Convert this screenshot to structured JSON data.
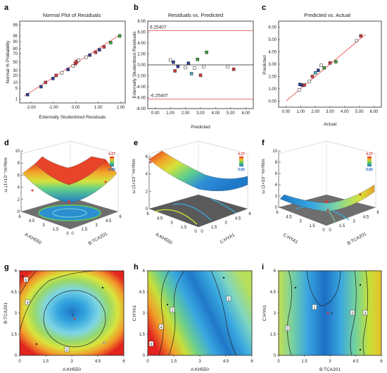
{
  "colors": {
    "ref_line": "#e8454a",
    "point_red": "#d13b3b",
    "point_blue": "#2f3f9b",
    "point_green": "#3fa53a",
    "point_cyan": "#48b0c8",
    "axis": "#222222",
    "floor_gray": "#6e6e6e"
  },
  "chart_data": [
    {
      "panel": "a",
      "type": "scatter",
      "title": "Normal Plot of Residuals",
      "xlabel": "Externally Studentized Residuals",
      "ylabel": "Normal % Probability",
      "x_ticks": [
        "-2.00",
        "-1.00",
        "0.00",
        "1.00",
        "2.00"
      ],
      "xlim": [
        -2.5,
        2.2
      ],
      "y_ticks": [
        "1",
        "5",
        "10",
        "20",
        "30",
        "50",
        "70",
        "80",
        "90",
        "95",
        "99"
      ],
      "y_probs": [
        1,
        5,
        10,
        20,
        30,
        50,
        70,
        80,
        90,
        95,
        99
      ],
      "line": [
        [
          -2.3,
          1.6
        ],
        [
          2.0,
          96
        ]
      ],
      "points": [
        {
          "x": -2.15,
          "y": 2,
          "color": "blue"
        },
        {
          "x": -1.55,
          "y": 6,
          "color": "blue"
        },
        {
          "x": -1.35,
          "y": 10,
          "color": "red"
        },
        {
          "x": -1.02,
          "y": 15,
          "color": "blue"
        },
        {
          "x": -0.88,
          "y": 20,
          "color": "red"
        },
        {
          "x": -0.62,
          "y": 25,
          "color": "white"
        },
        {
          "x": -0.35,
          "y": 32,
          "color": "blue"
        },
        {
          "x": -0.12,
          "y": 40,
          "color": "white"
        },
        {
          "x": -0.02,
          "y": 46,
          "color": "red"
        },
        {
          "x": 0.04,
          "y": 50,
          "color": "red"
        },
        {
          "x": 0.12,
          "y": 54,
          "color": "white"
        },
        {
          "x": 0.45,
          "y": 62,
          "color": "white"
        },
        {
          "x": 0.62,
          "y": 67,
          "color": "blue"
        },
        {
          "x": 0.88,
          "y": 73,
          "color": "red"
        },
        {
          "x": 1.05,
          "y": 78,
          "color": "blue"
        },
        {
          "x": 1.25,
          "y": 83,
          "color": "red"
        },
        {
          "x": 1.55,
          "y": 89,
          "color": "green"
        },
        {
          "x": 1.95,
          "y": 95,
          "color": "green"
        }
      ]
    },
    {
      "panel": "b",
      "type": "scatter",
      "title": "Residuals vs. Predicted",
      "xlabel": "Predicted",
      "ylabel": "Externally Studentized Residuals",
      "x_ticks": [
        "0.00",
        "1.00",
        "2.00",
        "3.00",
        "4.00",
        "5.00",
        "6.00"
      ],
      "y_ticks": [
        "8.00",
        "6.00",
        "4.00",
        "2.00",
        "0.00",
        "-2.00",
        "-4.00",
        "-6.00",
        "-8.00"
      ],
      "xlim": [
        -0.5,
        6.5
      ],
      "ylim": [
        -8,
        8
      ],
      "upper_limit": 6.25407,
      "lower_limit": -6.25407,
      "upper_label": "6.25407",
      "lower_label": "-6.25407",
      "points": [
        {
          "x": 1.0,
          "y": 0.9,
          "color": "white"
        },
        {
          "x": 1.2,
          "y": 0.5,
          "color": "blue"
        },
        {
          "x": 1.3,
          "y": -1.1,
          "color": "red"
        },
        {
          "x": 1.5,
          "y": -0.3,
          "color": "blue"
        },
        {
          "x": 2.0,
          "y": -0.5,
          "color": "white"
        },
        {
          "x": 2.2,
          "y": 0.3,
          "color": "blue"
        },
        {
          "x": 2.4,
          "y": -1.6,
          "color": "cyan"
        },
        {
          "x": 2.6,
          "y": -0.6,
          "color": "white"
        },
        {
          "x": 2.8,
          "y": 1.0,
          "color": "green"
        },
        {
          "x": 3.0,
          "y": -1.9,
          "color": "red"
        },
        {
          "x": 3.2,
          "y": -0.3,
          "color": "white"
        },
        {
          "x": 3.4,
          "y": 2.3,
          "color": "green"
        },
        {
          "x": 4.8,
          "y": -0.3,
          "color": "white"
        },
        {
          "x": 5.2,
          "y": -0.8,
          "color": "red"
        }
      ]
    },
    {
      "panel": "c",
      "type": "scatter",
      "title": "Predicted vs. Actual",
      "xlabel": "Actual",
      "ylabel": "Predicted",
      "x_ticks": [
        "0.00",
        "1.00",
        "2.00",
        "3.00",
        "4.00",
        "5.00",
        "6.00"
      ],
      "y_ticks": [
        "0.00",
        "1.00",
        "2.00",
        "3.00",
        "4.00",
        "5.00",
        "6.00"
      ],
      "xlim": [
        -0.5,
        6.5
      ],
      "ylim": [
        -0.5,
        6.5
      ],
      "line": [
        [
          0,
          0
        ],
        [
          5.4,
          5.4
        ]
      ],
      "points": [
        {
          "x": 0.9,
          "y": 0.9,
          "color": "white"
        },
        {
          "x": 0.95,
          "y": 1.35,
          "color": "blue"
        },
        {
          "x": 1.1,
          "y": 1.3,
          "color": "blue"
        },
        {
          "x": 1.25,
          "y": 1.3,
          "color": "red"
        },
        {
          "x": 1.6,
          "y": 1.6,
          "color": "white"
        },
        {
          "x": 1.8,
          "y": 2.0,
          "color": "red"
        },
        {
          "x": 2.0,
          "y": 2.3,
          "color": "cyan"
        },
        {
          "x": 2.2,
          "y": 2.5,
          "color": "blue"
        },
        {
          "x": 2.4,
          "y": 2.9,
          "color": "white"
        },
        {
          "x": 2.6,
          "y": 2.7,
          "color": "green"
        },
        {
          "x": 3.0,
          "y": 3.1,
          "color": "red"
        },
        {
          "x": 3.4,
          "y": 3.2,
          "color": "green"
        },
        {
          "x": 4.8,
          "y": 4.9,
          "color": "white"
        },
        {
          "x": 5.1,
          "y": 5.3,
          "color": "red"
        }
      ]
    },
    {
      "panel": "d",
      "type": "surface3d",
      "zlabel": "ω (1×10⁻⁵m³/Nm",
      "z_ticks": [
        "10",
        "8",
        "6",
        "4",
        "2",
        "0"
      ],
      "x_axis_label": "A:KH550",
      "y_axis_label": "B:TCA201",
      "x_ticks": [
        "6",
        "4.5",
        "3",
        "1.5",
        "0"
      ],
      "y_ticks": [
        "0",
        "1.5",
        "3",
        "4.5",
        "6"
      ],
      "scale_max": "4.27",
      "scale_min": "0.82"
    },
    {
      "panel": "e",
      "type": "surface3d",
      "zlabel": "ω (1×10⁻⁵m³/Nm",
      "z_ticks": [
        "6",
        "4",
        "2",
        "0"
      ],
      "x_axis_label": "A:KH550",
      "y_axis_label": "C:HYA1",
      "x_ticks": [
        "6",
        "4.5",
        "3",
        "1.5",
        "0"
      ],
      "y_ticks": [
        "0",
        "1.5",
        "3",
        "4.5",
        "6"
      ],
      "scale_max": "4.27",
      "scale_min": "0.82"
    },
    {
      "panel": "f",
      "type": "surface3d",
      "zlabel": "ω (1×10⁻⁵m³/Nm",
      "z_ticks": [
        "10",
        "8",
        "6",
        "4",
        "2",
        "0"
      ],
      "x_axis_label": "C:HYA1",
      "y_axis_label": "B:TCA201",
      "x_ticks": [
        "6",
        "4.5",
        "3",
        "1.5",
        "0"
      ],
      "y_ticks": [
        "0",
        "1.5",
        "3",
        "4.5",
        "6"
      ],
      "scale_max": "4.27",
      "scale_min": "0.82"
    },
    {
      "panel": "g",
      "type": "heatmap",
      "xlabel": "A:KH550",
      "ylabel": "B:TCA201",
      "x_ticks": [
        "0",
        "1.5",
        "3",
        "4.5",
        "6"
      ],
      "y_ticks": [
        "0",
        "1.5",
        "3",
        "4.5",
        "6"
      ],
      "contour_labels": [
        "6",
        "4",
        "2",
        "2",
        "3"
      ],
      "center_label": "3"
    },
    {
      "panel": "h",
      "type": "heatmap",
      "xlabel": "A:KH550",
      "ylabel": "C:HYA1",
      "x_ticks": [
        "0",
        "1.5",
        "3",
        "4.5",
        "6"
      ],
      "y_ticks": [
        "0",
        "1.5",
        "3",
        "4.5",
        "6"
      ],
      "contour_labels": [
        "6",
        "4",
        "2",
        "2"
      ]
    },
    {
      "panel": "i",
      "type": "heatmap",
      "xlabel": "B:TCA201",
      "ylabel": "C:HYA1",
      "x_ticks": [
        "0",
        "1.5",
        "3",
        "4.5",
        "6"
      ],
      "y_ticks": [
        "0",
        "1.5",
        "3",
        "4.5",
        "6"
      ],
      "contour_labels": [
        "1",
        "2",
        "2",
        "3"
      ],
      "center_label": "3"
    }
  ],
  "panel_letters": [
    "a",
    "b",
    "c",
    "d",
    "e",
    "f",
    "g",
    "h",
    "i"
  ]
}
